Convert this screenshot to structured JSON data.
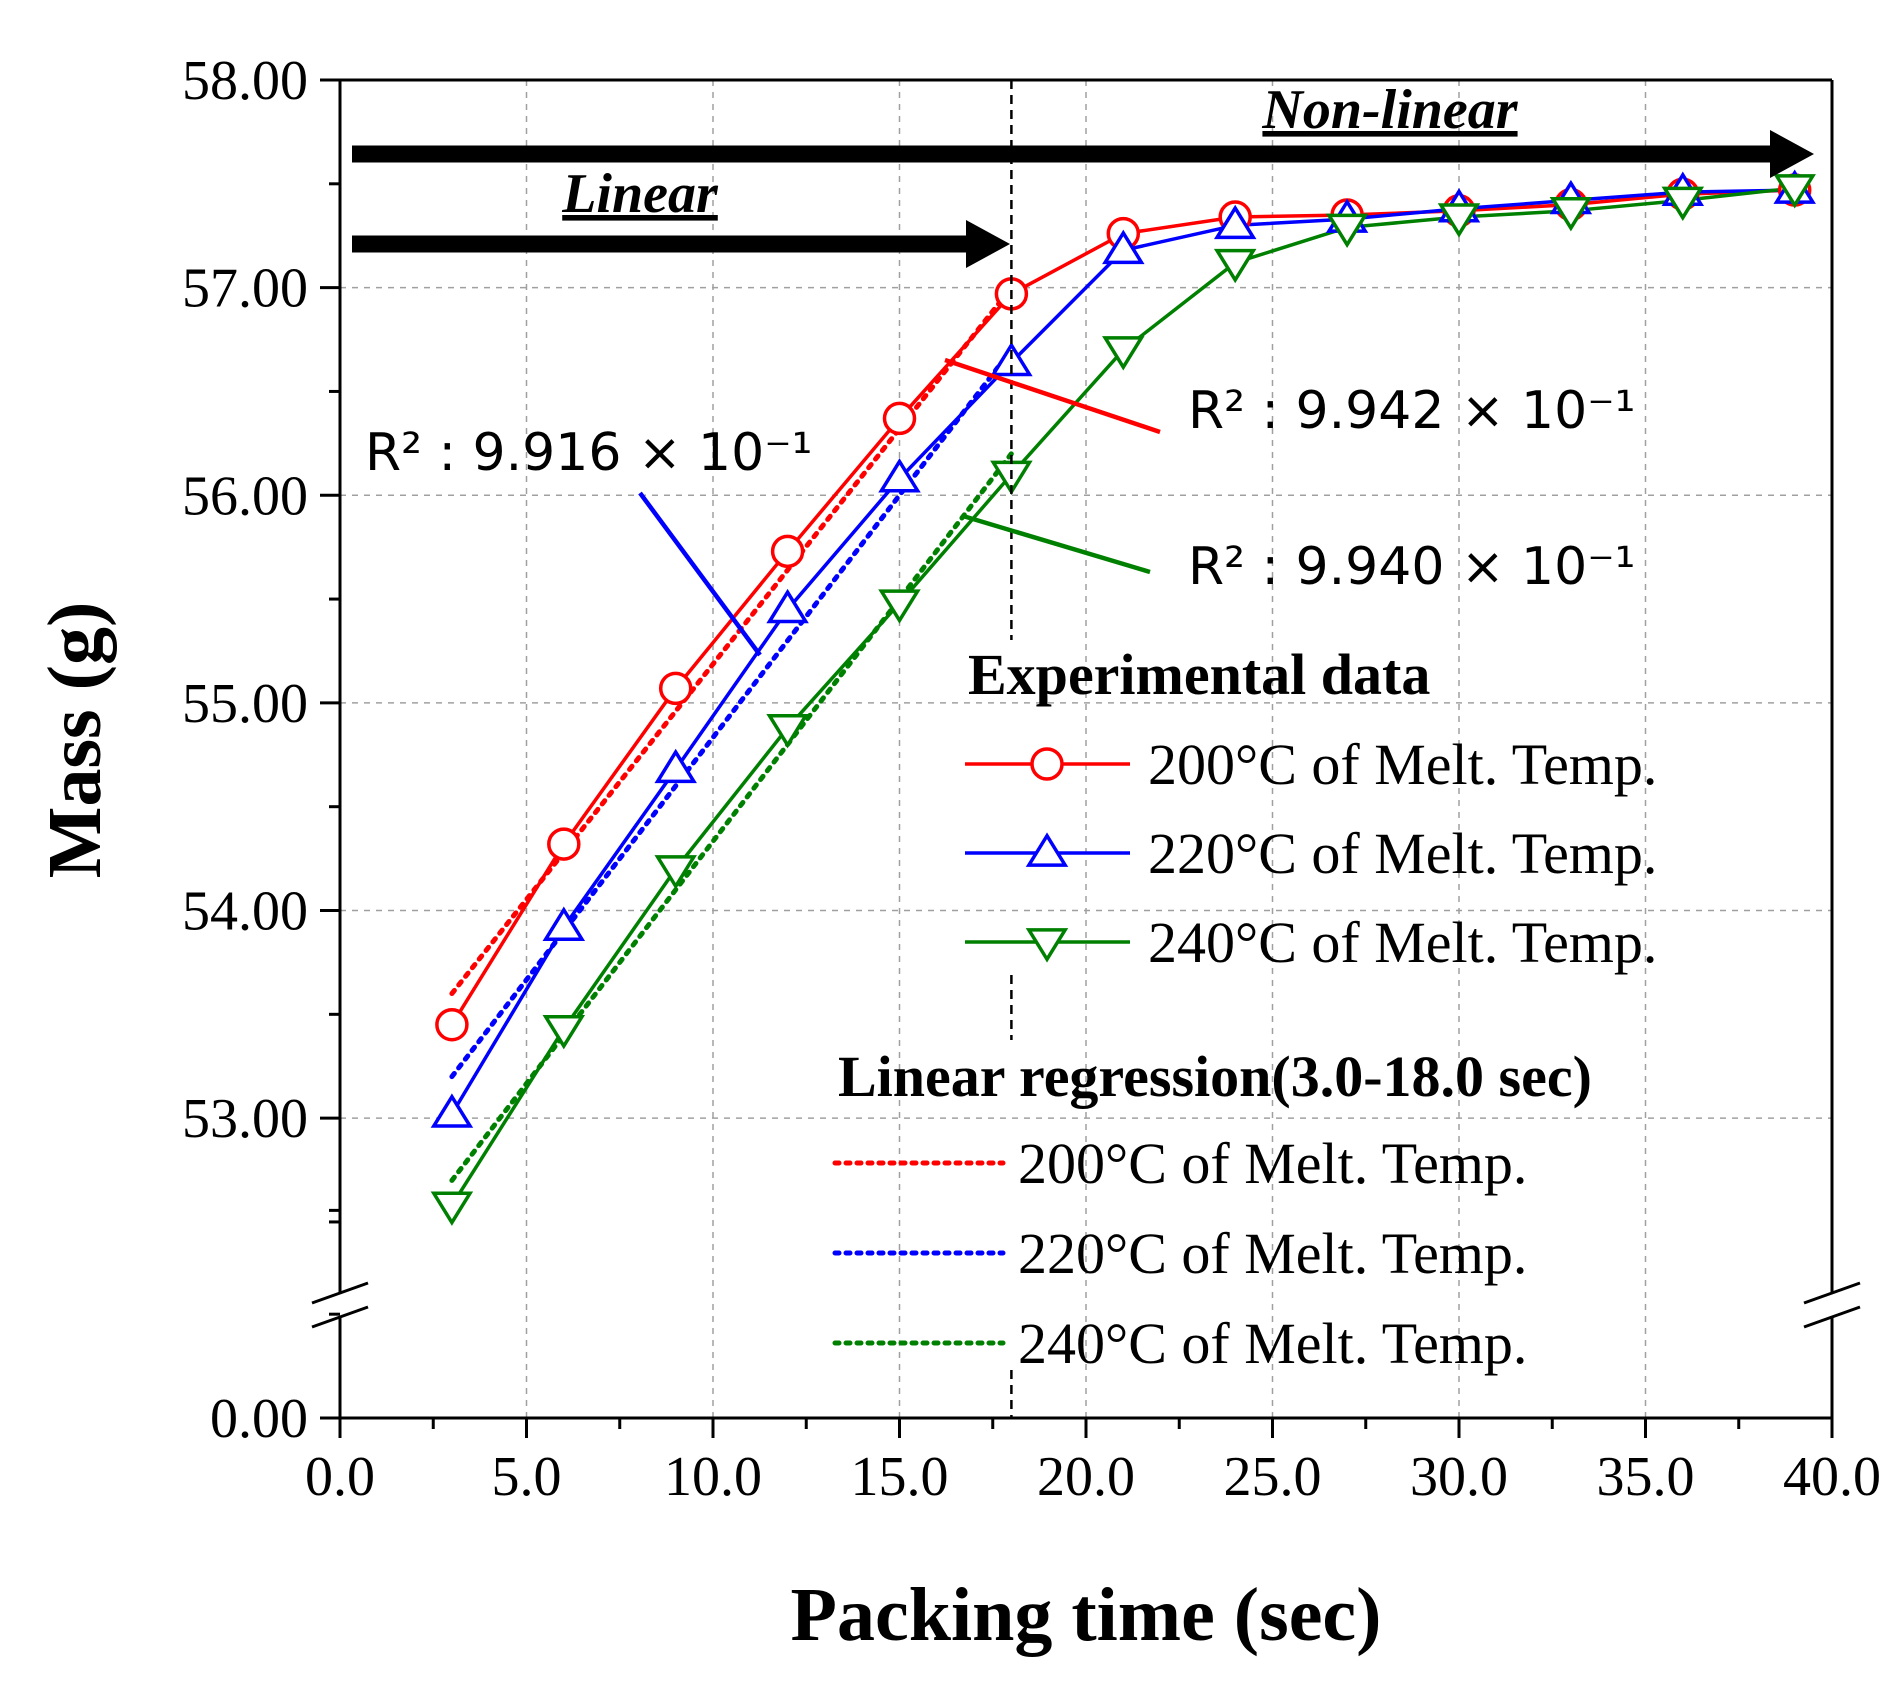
{
  "chart_data": {
    "type": "line",
    "title": "",
    "xlabel": "Packing time (sec)",
    "ylabel": "Mass (g)",
    "xlim": [
      0,
      40
    ],
    "ylim": [
      0,
      58
    ],
    "y_break": [
      0.4,
      52.1
    ],
    "grid": true,
    "x_ticks": [
      0,
      5,
      10,
      15,
      20,
      25,
      30,
      35,
      40
    ],
    "x_tick_labels": [
      "0.0",
      "5.0",
      "10.0",
      "15.0",
      "20.0",
      "25.0",
      "30.0",
      "35.0",
      "40.0"
    ],
    "y_ticks": [
      0,
      53,
      54,
      55,
      56,
      57,
      58
    ],
    "y_tick_labels": [
      "0.00",
      "53.00",
      "54.00",
      "55.00",
      "56.00",
      "57.00",
      "58.00"
    ],
    "x": [
      3,
      6,
      9,
      12,
      15,
      18,
      21,
      24,
      27,
      30,
      33,
      36,
      39
    ],
    "series": [
      {
        "name": "200°C of Melt. Temp.",
        "marker": "circle",
        "color": "#ff0000",
        "values": [
          53.45,
          54.32,
          55.07,
          55.73,
          56.37,
          56.97,
          57.26,
          57.34,
          57.35,
          57.37,
          57.4,
          57.45,
          57.47
        ]
      },
      {
        "name": "220°C of Melt. Temp.",
        "marker": "triangle-up",
        "color": "#0000ff",
        "values": [
          53.02,
          53.92,
          54.68,
          55.45,
          56.08,
          56.64,
          57.18,
          57.3,
          57.33,
          57.38,
          57.42,
          57.46,
          57.47
        ]
      },
      {
        "name": "240°C of Melt. Temp.",
        "marker": "triangle-down",
        "color": "#008000",
        "values": [
          52.58,
          53.43,
          54.2,
          54.88,
          55.48,
          56.1,
          56.7,
          57.12,
          57.29,
          57.34,
          57.37,
          57.42,
          57.48
        ]
      }
    ],
    "regression": {
      "title": "Linear regression(3.0-18.0 sec)",
      "x_range": [
        3,
        18
      ],
      "series": [
        {
          "name": "200°C of Melt. Temp.",
          "color": "#ff0000",
          "start": 53.6,
          "end": 57.0,
          "r2_label": "R² : 9.942 × 10⁻¹"
        },
        {
          "name": "220°C of Melt. Temp.",
          "color": "#0000ff",
          "start": 53.2,
          "end": 56.7,
          "r2_label": "R² : 9.916 × 10⁻¹"
        },
        {
          "name": "240°C of Melt. Temp.",
          "color": "#008000",
          "start": 52.7,
          "end": 56.2,
          "r2_label": "R² : 9.940 × 10⁻¹"
        }
      ]
    },
    "annotations": {
      "linear_label": "Linear",
      "nonlinear_label": "Non-linear",
      "divider_x": 18
    },
    "legend": {
      "experimental_title": "Experimental data",
      "placement": "right"
    }
  }
}
